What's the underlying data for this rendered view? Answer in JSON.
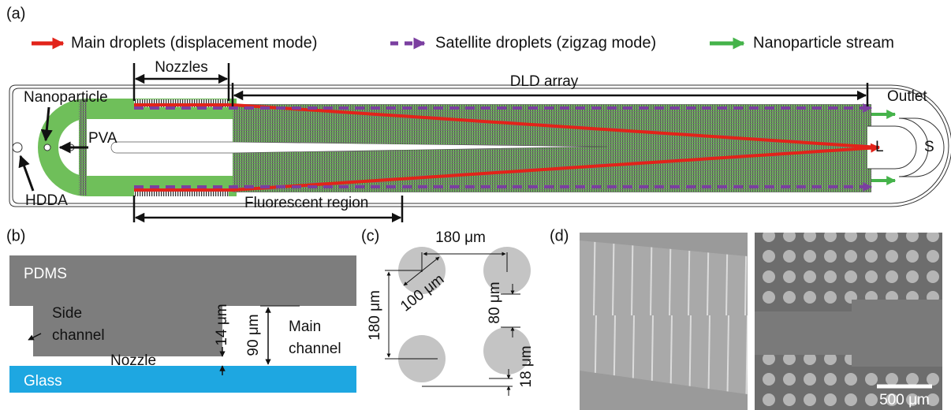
{
  "panel_a": {
    "label": "(a)",
    "legend": [
      "Main droplets (displacement mode)",
      "Satellite droplets (zigzag mode)",
      "Nanoparticle stream"
    ],
    "nozzles": "Nozzles",
    "dld_array": "DLD array",
    "outlet": "Outlet",
    "nanoparticle": "Nanoparticle",
    "pva": "PVA",
    "hdda": "HDDA",
    "outlet_l": "L",
    "outlet_s": "S",
    "fluorescent_region": "Fluorescent region"
  },
  "panel_b": {
    "label": "(b)",
    "pdms": "PDMS",
    "side_channel": [
      "Side",
      "channel"
    ],
    "nozzle": "Nozzle",
    "glass": "Glass",
    "nozzle_height": "14 μm",
    "channel_height": "90 μm",
    "main_channel": [
      "Main",
      "channel"
    ]
  },
  "panel_c": {
    "label": "(c)",
    "spacing_horizontal": "180 μm",
    "diameter": "100 μm",
    "spacing_vertical": "180 μm",
    "gap_vertical": "80 μm",
    "offset": "18 μm"
  },
  "panel_d": {
    "label": "(d)",
    "scale_bar": "500 μm"
  }
}
